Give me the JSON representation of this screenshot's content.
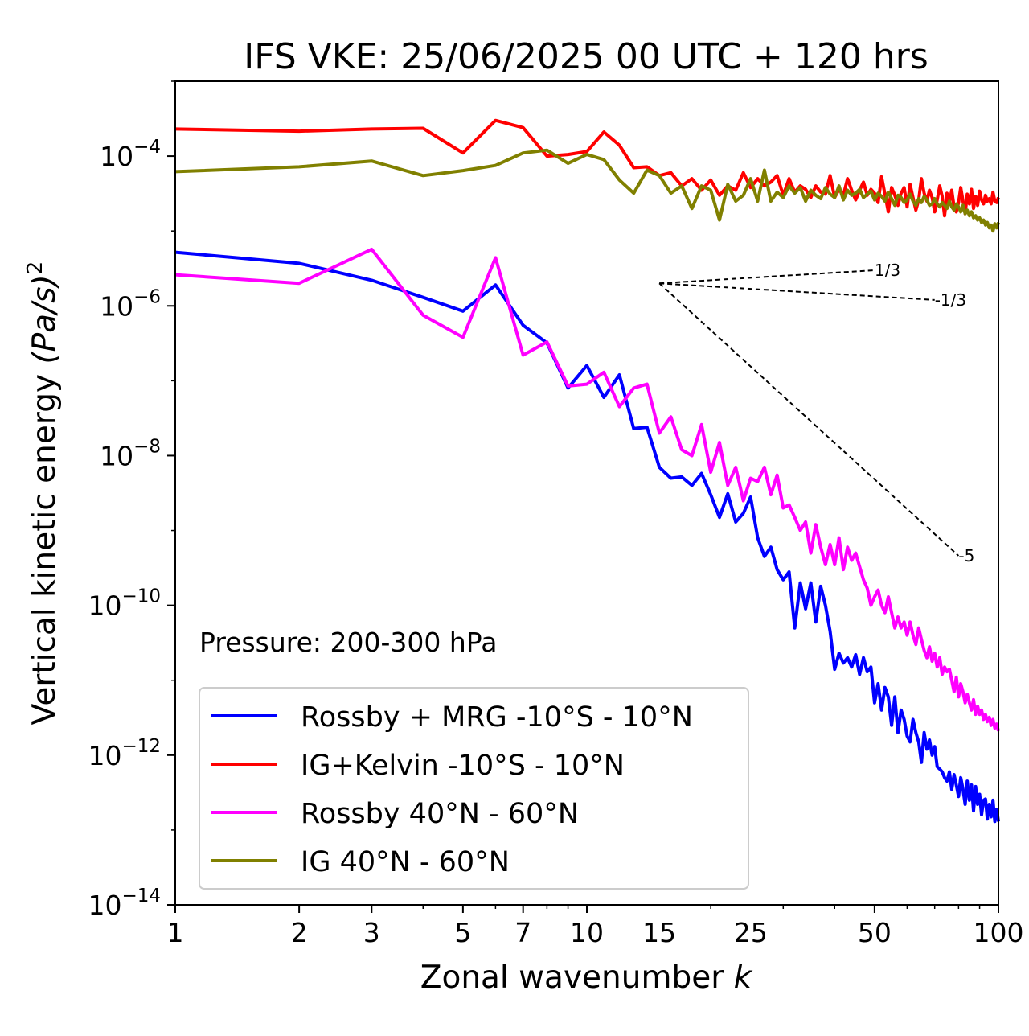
{
  "chart_data": {
    "type": "line",
    "title": "IFS VKE: 25/06/2025 00 UTC + 120 hrs",
    "xlabel": "Zonal wavenumber",
    "xlabel_italic": "k",
    "ylabel": "Vertical kinetic energy",
    "ylabel_unit": "(Pa/s)",
    "ylabel_unit_exp": "2",
    "xscale": "log",
    "yscale": "log",
    "xlim": [
      1,
      100
    ],
    "ylim": [
      1e-14,
      0.001
    ],
    "x_ticks": [
      1,
      2,
      3,
      5,
      7,
      10,
      15,
      25,
      50,
      100
    ],
    "x_tick_labels": [
      "1",
      "2",
      "3",
      "5",
      "7",
      "10",
      "15",
      "25",
      "50",
      "100"
    ],
    "y_ticks": [
      -14,
      -12,
      -10,
      -8,
      -6,
      -4
    ],
    "y_tick_base": "10",
    "y_tick_exponents": [
      "−14",
      "−12",
      "−10",
      "−8",
      "−6",
      "−4"
    ],
    "annotation": "Pressure: 200-300 hPa",
    "legend_position": "lower-left",
    "grid": false,
    "series": [
      {
        "name": "Rossby + MRG -10°S - 10°N",
        "color": "#0000ff",
        "x": [
          1,
          2,
          3,
          4,
          5,
          6,
          7,
          8,
          9,
          10,
          11,
          12,
          13,
          14,
          15,
          16,
          17,
          18,
          19,
          20,
          21,
          22,
          23,
          24,
          25,
          26,
          27,
          28,
          29,
          30,
          31,
          32,
          33,
          34,
          35,
          36,
          37,
          38,
          39,
          40,
          41,
          42,
          43,
          44,
          45,
          46,
          47,
          48,
          49,
          50,
          51,
          52,
          53,
          54,
          55,
          56,
          57,
          58,
          59,
          60,
          61,
          62,
          63,
          64,
          65,
          66,
          67,
          68,
          69,
          70,
          71,
          72,
          73,
          74,
          75,
          76,
          77,
          78,
          79,
          80,
          81,
          82,
          83,
          84,
          85,
          86,
          87,
          88,
          89,
          90,
          91,
          92,
          93,
          94,
          95,
          96,
          97,
          98,
          99,
          100
        ],
        "y": [
          5.2e-06,
          3.7e-06,
          2.2e-06,
          1.3e-06,
          8.5e-07,
          1.9e-06,
          5.5e-07,
          3.2e-07,
          8e-08,
          1.6e-07,
          6e-08,
          1.2e-07,
          2.3e-08,
          2.4e-08,
          7e-09,
          5e-09,
          5.2e-09,
          4e-09,
          5.8e-09,
          3e-09,
          1.5e-09,
          3.1e-09,
          1.3e-09,
          1.7e-09,
          2.8e-09,
          8e-10,
          4.5e-10,
          6e-10,
          3e-10,
          2.2e-10,
          2.8e-10,
          5e-11,
          2e-10,
          9e-11,
          2e-10,
          6e-11,
          1.8e-10,
          1e-10,
          4.5e-11,
          1.4e-11,
          2.3e-11,
          1.7e-11,
          2e-11,
          1.5e-11,
          2.2e-11,
          1.2e-11,
          2e-11,
          1.3e-11,
          1.5e-11,
          5e-12,
          9e-12,
          4e-12,
          8e-12,
          6e-12,
          2.5e-12,
          6e-12,
          2e-12,
          4e-12,
          3e-12,
          1.8e-12,
          1.5e-12,
          3e-12,
          2e-12,
          1.5e-12,
          8e-13,
          2e-12,
          1.2e-12,
          1.6e-12,
          1e-12,
          1.3e-12,
          7e-13,
          6.5e-13,
          6e-13,
          5e-13,
          4.5e-13,
          6e-13,
          3.5e-13,
          5.5e-13,
          4e-13,
          2.8e-13,
          5e-13,
          3.5e-13,
          2.2e-13,
          4.5e-13,
          2.5e-13,
          4e-13,
          1.8e-13,
          3.8e-13,
          2.2e-13,
          3e-13,
          1.6e-13,
          2.5e-13,
          2.6e-13,
          1.4e-13,
          2.2e-13,
          1.5e-13,
          2.5e-13,
          1.3e-13,
          1.9e-13,
          1.3e-13
        ]
      },
      {
        "name": "IG+Kelvin -10°S - 10°N",
        "color": "#ff0000",
        "x": [
          1,
          2,
          3,
          4,
          5,
          6,
          7,
          8,
          9,
          10,
          11,
          12,
          13,
          14,
          15,
          16,
          17,
          18,
          19,
          20,
          21,
          22,
          23,
          24,
          25,
          26,
          27,
          28,
          29,
          30,
          31,
          32,
          33,
          34,
          35,
          36,
          37,
          38,
          39,
          40,
          41,
          42,
          43,
          44,
          45,
          46,
          47,
          48,
          49,
          50,
          51,
          52,
          53,
          54,
          55,
          56,
          57,
          58,
          59,
          60,
          61,
          62,
          63,
          64,
          65,
          66,
          67,
          68,
          69,
          70,
          71,
          72,
          73,
          74,
          75,
          76,
          77,
          78,
          79,
          80,
          81,
          82,
          83,
          84,
          85,
          86,
          87,
          88,
          89,
          90,
          91,
          92,
          93,
          94,
          95,
          96,
          97,
          98,
          99,
          100
        ],
        "y": [
          0.00023,
          0.000215,
          0.00023,
          0.000235,
          0.00011,
          0.0003,
          0.00024,
          0.0001,
          0.000105,
          0.000115,
          0.00021,
          0.00014,
          7e-05,
          7.2e-05,
          5.5e-05,
          6e-05,
          4e-05,
          5e-05,
          3.5e-05,
          4.8e-05,
          3e-05,
          4e-05,
          3.5e-05,
          6e-05,
          3.8e-05,
          5e-05,
          4e-05,
          4.5e-05,
          5.5e-05,
          3e-05,
          5e-05,
          3.3e-05,
          4e-05,
          3.6e-05,
          2.8e-05,
          4e-05,
          3.3e-05,
          3.1e-05,
          5.5e-05,
          2.8e-05,
          3.6e-05,
          3e-05,
          5e-05,
          3.5e-05,
          2.6e-05,
          3.5e-05,
          4.5e-05,
          3e-05,
          3.6e-05,
          3.2e-05,
          2.4e-05,
          5.3e-05,
          3.1e-05,
          1.8e-05,
          3.8e-05,
          3e-05,
          2.2e-05,
          3.2e-05,
          3.8e-05,
          2.1e-05,
          4.2e-05,
          2.8e-05,
          1.9e-05,
          2.6e-05,
          5e-05,
          3.2e-05,
          2.5e-05,
          3.5e-05,
          2.8e-05,
          1.8e-05,
          2.6e-05,
          4e-05,
          2.9e-05,
          1.6e-05,
          3.2e-05,
          2.4e-05,
          3.5e-05,
          2.1e-05,
          1.8e-05,
          2.4e-05,
          3.8e-05,
          2.5e-05,
          1.7e-05,
          3.1e-05,
          2.3e-05,
          3.6e-05,
          2e-05,
          2.9e-05,
          2.2e-05,
          3.4e-05,
          2.6e-05,
          2.3e-05,
          3e-05,
          2.5e-05,
          2.7e-05,
          2.3e-05,
          3.3e-05,
          2.5e-05,
          2.4e-05,
          2.8e-05
        ]
      },
      {
        "name": "Rossby 40°N - 60°N",
        "color": "#ff00ff",
        "x": [
          1,
          2,
          3,
          4,
          5,
          6,
          7,
          8,
          9,
          10,
          11,
          12,
          13,
          14,
          15,
          16,
          17,
          18,
          19,
          20,
          21,
          22,
          23,
          24,
          25,
          26,
          27,
          28,
          29,
          30,
          31,
          32,
          33,
          34,
          35,
          36,
          37,
          38,
          39,
          40,
          41,
          42,
          43,
          44,
          45,
          46,
          47,
          48,
          49,
          50,
          51,
          52,
          53,
          54,
          55,
          56,
          57,
          58,
          59,
          60,
          61,
          62,
          63,
          64,
          65,
          66,
          67,
          68,
          69,
          70,
          71,
          72,
          73,
          74,
          75,
          76,
          77,
          78,
          79,
          80,
          81,
          82,
          83,
          84,
          85,
          86,
          87,
          88,
          89,
          90,
          91,
          92,
          93,
          94,
          95,
          96,
          97,
          98,
          99,
          100
        ],
        "y": [
          2.6e-06,
          2e-06,
          5.7e-06,
          7.5e-07,
          3.8e-07,
          4.4e-06,
          2.2e-07,
          3.3e-07,
          8.5e-08,
          9e-08,
          1.3e-07,
          4.5e-08,
          8e-08,
          9e-08,
          2e-08,
          3.3e-08,
          1.2e-08,
          1e-08,
          2.6e-08,
          6e-09,
          1.5e-08,
          4e-09,
          7e-09,
          2.5e-09,
          5e-09,
          4.5e-09,
          7e-09,
          3e-09,
          5.5e-09,
          2e-09,
          2.2e-09,
          1.5e-09,
          1e-09,
          1.3e-09,
          5e-10,
          1.2e-09,
          6e-10,
          3.5e-10,
          6.5e-10,
          3.5e-10,
          8e-10,
          3e-10,
          6e-10,
          4e-10,
          5e-10,
          3.3e-10,
          2.2e-10,
          1.7e-10,
          1e-10,
          1.3e-10,
          1.6e-10,
          1e-10,
          8e-11,
          1.3e-10,
          8e-11,
          5e-11,
          7e-11,
          5e-11,
          6e-11,
          4e-11,
          6e-11,
          4e-11,
          3e-11,
          5e-11,
          3.5e-11,
          2.5e-11,
          2e-11,
          2.8e-11,
          1.8e-11,
          2.3e-11,
          1.5e-11,
          2e-11,
          1.2e-11,
          1.5e-11,
          1.3e-11,
          1.4e-11,
          1e-11,
          7e-12,
          1.1e-11,
          6e-12,
          9e-12,
          7e-12,
          5e-12,
          6.5e-12,
          5e-12,
          4e-12,
          5.5e-12,
          3.5e-12,
          4.5e-12,
          3.5e-12,
          4e-12,
          3e-12,
          3.5e-12,
          2.8e-12,
          3.2e-12,
          2.5e-12,
          3e-12,
          2.3e-12,
          2.6e-12,
          2.1e-12
        ]
      },
      {
        "name": "IG 40°N - 60°N",
        "color": "#808000",
        "x": [
          1,
          2,
          3,
          4,
          5,
          6,
          7,
          8,
          9,
          10,
          11,
          12,
          13,
          14,
          15,
          16,
          17,
          18,
          19,
          20,
          21,
          22,
          23,
          24,
          25,
          26,
          27,
          28,
          29,
          30,
          31,
          32,
          33,
          34,
          35,
          36,
          37,
          38,
          39,
          40,
          41,
          42,
          43,
          44,
          45,
          46,
          47,
          48,
          49,
          50,
          51,
          52,
          53,
          54,
          55,
          56,
          57,
          58,
          59,
          60,
          61,
          62,
          63,
          64,
          65,
          66,
          67,
          68,
          69,
          70,
          71,
          72,
          73,
          74,
          75,
          76,
          77,
          78,
          79,
          80,
          81,
          82,
          83,
          84,
          85,
          86,
          87,
          88,
          89,
          90,
          91,
          92,
          93,
          94,
          95,
          96,
          97,
          98,
          99,
          100
        ],
        "y": [
          6.2e-05,
          7.2e-05,
          8.6e-05,
          5.5e-05,
          6.4e-05,
          7.5e-05,
          0.00011,
          0.00012,
          8e-05,
          0.000105,
          9e-05,
          4.8e-05,
          3.2e-05,
          6.5e-05,
          5.5e-05,
          3.2e-05,
          4e-05,
          2e-05,
          4e-05,
          3.5e-05,
          1.4e-05,
          4.2e-05,
          2.5e-05,
          3e-05,
          5e-05,
          2.5e-05,
          6.5e-05,
          2.5e-05,
          3.3e-05,
          2.8e-05,
          4e-05,
          3.2e-05,
          3.8e-05,
          2.5e-05,
          3.5e-05,
          3e-05,
          2.7e-05,
          3.8e-05,
          3.1e-05,
          2.8e-05,
          4e-05,
          2.6e-05,
          3.5e-05,
          3e-05,
          3.2e-05,
          3.6e-05,
          2.8e-05,
          3.1e-05,
          3.4e-05,
          2.6e-05,
          3.2e-05,
          2.9e-05,
          2.5e-05,
          3.3e-05,
          2.7e-05,
          2.2e-05,
          3e-05,
          2.8e-05,
          2.4e-05,
          2.6e-05,
          3.1e-05,
          2.5e-05,
          2.2e-05,
          2.7e-05,
          2.4e-05,
          2.9e-05,
          2.6e-05,
          2.2e-05,
          2.3e-05,
          2.7e-05,
          2.3e-05,
          2.1e-05,
          2.4e-05,
          2.2e-05,
          2e-05,
          2.5e-05,
          2.1e-05,
          1.9e-05,
          2.3e-05,
          2.1e-05,
          1.8e-05,
          2.2e-05,
          1.7e-05,
          1.9e-05,
          1.6e-05,
          1.8e-05,
          1.5e-05,
          1.6e-05,
          1.4e-05,
          1.5e-05,
          1.3e-05,
          1.4e-05,
          1.2e-05,
          1.3e-05,
          1.1e-05,
          1.2e-05,
          1e-05,
          1.25e-05,
          1.1e-05,
          1.3e-05
        ]
      }
    ],
    "reference_lines": [
      {
        "label": "1/3",
        "x": [
          15,
          50
        ],
        "y": [
          2e-06,
          2.99e-06
        ]
      },
      {
        "label": "-1/3",
        "x": [
          15,
          70
        ],
        "y": [
          2e-06,
          1.2e-06
        ]
      },
      {
        "label": "-5",
        "x": [
          15,
          80
        ],
        "y": [
          2e-06,
          4.6e-10
        ]
      }
    ]
  }
}
